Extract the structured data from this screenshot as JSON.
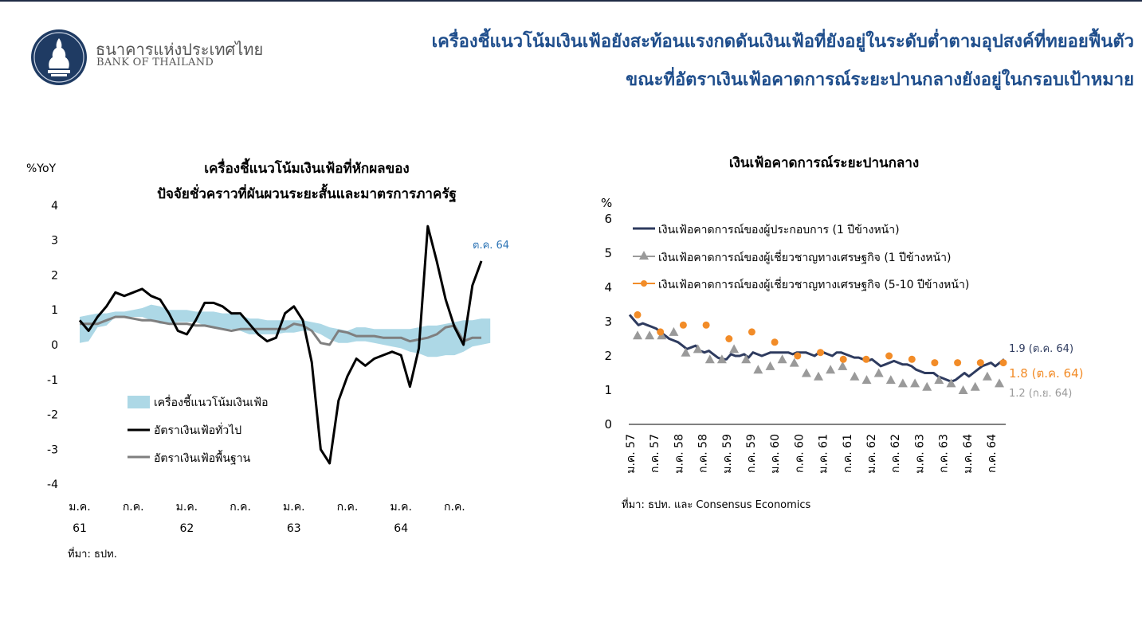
{
  "header": {
    "org_name_th": "ธนาคารแห่งประเทศไทย",
    "org_name_en": "BANK OF THAILAND",
    "headline_line1": "เครื่องชี้แนวโน้มเงินเฟ้อยังสะท้อนแรงกดดันเงินเฟ้อที่ยังอยู่ในระดับต่ำตามอุปสงค์ที่ทยอยฟื้นตัว",
    "headline_line2": "ขณะที่อัตราเงินเฟ้อคาดการณ์ระยะปานกลางยังอยู่ในกรอบเป้าหมาย"
  },
  "colors": {
    "navy": "#2e3b5f",
    "black": "#000000",
    "gray": "#7f7f7f",
    "band": "#add8e6",
    "orange": "#f28c28",
    "triangle": "#9a9a9a",
    "headline": "#1f4e8c",
    "annotation_blue": "#2e75b6"
  },
  "chart_data": [
    {
      "type": "line",
      "title_line1": "เครื่องชี้แนวโน้มเงินเฟ้อที่หักผลของ",
      "title_line2": "ปัจจัยชั่วคราวที่ผันผวนระยะสั้นและมาตรการภาครัฐ",
      "ylabel": "%YoY",
      "ylim": [
        -4,
        4
      ],
      "yticks": [
        "4",
        "3",
        "2",
        "1",
        "0",
        "-1",
        "-2",
        "-3",
        "-4"
      ],
      "xticks": [
        {
          "i": 0,
          "month": "ม.ค.",
          "year": "61"
        },
        {
          "i": 6,
          "month": "ก.ค.",
          "year": ""
        },
        {
          "i": 12,
          "month": "ม.ค.",
          "year": "62"
        },
        {
          "i": 18,
          "month": "ก.ค.",
          "year": ""
        },
        {
          "i": 24,
          "month": "ม.ค.",
          "year": "63"
        },
        {
          "i": 30,
          "month": "ก.ค.",
          "year": ""
        },
        {
          "i": 36,
          "month": "ม.ค.",
          "year": "64"
        },
        {
          "i": 42,
          "month": "ก.ค.",
          "year": ""
        }
      ],
      "annotation": "ต.ค. 64",
      "source": "ที่มา: ธปท.",
      "band": {
        "name": "เครื่องชี้แนวโน้มเงินเฟ้อ",
        "lower": [
          0.05,
          0.1,
          0.5,
          0.55,
          0.8,
          0.8,
          0.8,
          0.8,
          0.7,
          0.6,
          0.6,
          0.65,
          0.65,
          0.65,
          0.55,
          0.5,
          0.45,
          0.45,
          0.4,
          0.3,
          0.3,
          0.3,
          0.3,
          0.35,
          0.35,
          0.4,
          0.4,
          0.3,
          0.15,
          0.05,
          0.05,
          0.1,
          0.1,
          0.05,
          0.0,
          -0.05,
          -0.1,
          -0.2,
          -0.25,
          -0.35,
          -0.35,
          -0.3,
          -0.3,
          -0.2,
          -0.05,
          0.0,
          0.05
        ],
        "upper": [
          0.8,
          0.85,
          0.9,
          0.9,
          0.95,
          0.95,
          1.0,
          1.05,
          1.15,
          1.1,
          1.0,
          1.0,
          1.0,
          0.95,
          0.95,
          0.95,
          0.9,
          0.9,
          0.85,
          0.75,
          0.75,
          0.7,
          0.7,
          0.7,
          0.7,
          0.7,
          0.65,
          0.6,
          0.5,
          0.45,
          0.4,
          0.5,
          0.5,
          0.45,
          0.45,
          0.45,
          0.45,
          0.45,
          0.5,
          0.55,
          0.55,
          0.6,
          0.65,
          0.7,
          0.7,
          0.75,
          0.75
        ]
      },
      "series": [
        {
          "name": "อัตราเงินเฟ้อทั่วไป",
          "values": [
            0.7,
            0.4,
            0.8,
            1.1,
            1.5,
            1.4,
            1.5,
            1.6,
            1.4,
            1.3,
            0.9,
            0.4,
            0.3,
            0.7,
            1.2,
            1.2,
            1.1,
            0.9,
            0.9,
            0.6,
            0.3,
            0.1,
            0.2,
            0.9,
            1.1,
            0.7,
            -0.5,
            -3.0,
            -3.4,
            -1.6,
            -0.9,
            -0.4,
            -0.6,
            -0.4,
            -0.3,
            -0.2,
            -0.3,
            -1.2,
            -0.1,
            3.4,
            2.4,
            1.3,
            0.5,
            0.0,
            1.7,
            2.4
          ]
        },
        {
          "name": "อัตราเงินเฟ้อพื้นฐาน",
          "values": [
            0.6,
            0.6,
            0.6,
            0.7,
            0.8,
            0.8,
            0.75,
            0.7,
            0.7,
            0.65,
            0.6,
            0.6,
            0.6,
            0.55,
            0.55,
            0.5,
            0.45,
            0.4,
            0.45,
            0.45,
            0.45,
            0.45,
            0.45,
            0.45,
            0.6,
            0.55,
            0.4,
            0.05,
            0.0,
            0.4,
            0.35,
            0.25,
            0.25,
            0.25,
            0.2,
            0.2,
            0.2,
            0.1,
            0.15,
            0.2,
            0.3,
            0.5,
            0.55,
            0.1,
            0.2,
            0.2
          ]
        }
      ]
    },
    {
      "type": "line",
      "title": "เงินเฟ้อคาดการณ์ระยะปานกลาง",
      "ylabel": "%",
      "ylim": [
        0,
        6
      ],
      "yticks": [
        "0",
        "1",
        "2",
        "3",
        "4",
        "5",
        "6"
      ],
      "xtick_labels": [
        "ม.ค. 57",
        "ก.ค. 57",
        "ม.ค. 58",
        "ก.ค. 58",
        "ม.ค. 59",
        "ก.ค. 59",
        "ม.ค. 60",
        "ก.ค. 60",
        "ม.ค. 61",
        "ก.ค. 61",
        "ม.ค. 62",
        "ก.ค. 62",
        "ม.ค. 63",
        "ก.ค. 63",
        "ม.ค. 64",
        "ก.ค. 64"
      ],
      "source": "ที่มา: ธปท. และ Consensus Economics",
      "series": [
        {
          "name": "เงินเฟ้อคาดการณ์ของผู้ประกอบการ (1 ปีข้างหน้า)",
          "end_label": "1.9 (ต.ค. 64)",
          "values": [
            3.2,
            3.05,
            2.9,
            2.95,
            2.9,
            2.85,
            2.8,
            2.7,
            2.6,
            2.5,
            2.45,
            2.4,
            2.3,
            2.2,
            2.25,
            2.3,
            2.15,
            2.1,
            2.15,
            2.05,
            1.95,
            1.9,
            1.9,
            2.05,
            2.0,
            2.0,
            2.05,
            1.95,
            2.1,
            2.05,
            2.0,
            2.05,
            2.1,
            2.1,
            2.1,
            2.1,
            2.1,
            2.05,
            2.1,
            2.1,
            2.1,
            2.05,
            2.0,
            2.1,
            2.1,
            2.05,
            2.0,
            2.1,
            2.1,
            2.05,
            2.0,
            1.95,
            1.95,
            1.9,
            1.85,
            1.9,
            1.8,
            1.7,
            1.75,
            1.8,
            1.85,
            1.8,
            1.75,
            1.75,
            1.7,
            1.6,
            1.55,
            1.5,
            1.5,
            1.5,
            1.4,
            1.35,
            1.3,
            1.25,
            1.3,
            1.4,
            1.5,
            1.4,
            1.5,
            1.6,
            1.7,
            1.75,
            1.8,
            1.7,
            1.8,
            1.9
          ]
        },
        {
          "name": "เงินเฟ้อคาดการณ์ของผู้เชี่ยวชาญทางเศรษฐกิจ (1 ปีข้างหน้า)",
          "end_label": "1.2 (ก.ย. 64)",
          "values": [
            2.6,
            2.6,
            2.6,
            2.7,
            2.1,
            2.2,
            1.9,
            1.9,
            2.2,
            1.9,
            1.6,
            1.7,
            1.9,
            1.8,
            1.5,
            1.4,
            1.6,
            1.7,
            1.4,
            1.3,
            1.5,
            1.3,
            1.2,
            1.2,
            1.1,
            1.3,
            1.2,
            1.0,
            1.1,
            1.4,
            1.2
          ]
        },
        {
          "name": "เงินเฟ้อคาดการณ์ของผู้เชี่ยวชาญทางเศรษฐกิจ (5-10 ปีข้างหน้า)",
          "end_label": "1.8 (ต.ค. 64)",
          "values": [
            3.2,
            2.7,
            2.9,
            2.9,
            2.5,
            2.7,
            2.4,
            2.0,
            2.1,
            1.9,
            1.9,
            2.0,
            1.9,
            1.8,
            1.8,
            1.8,
            1.8
          ]
        }
      ]
    }
  ]
}
